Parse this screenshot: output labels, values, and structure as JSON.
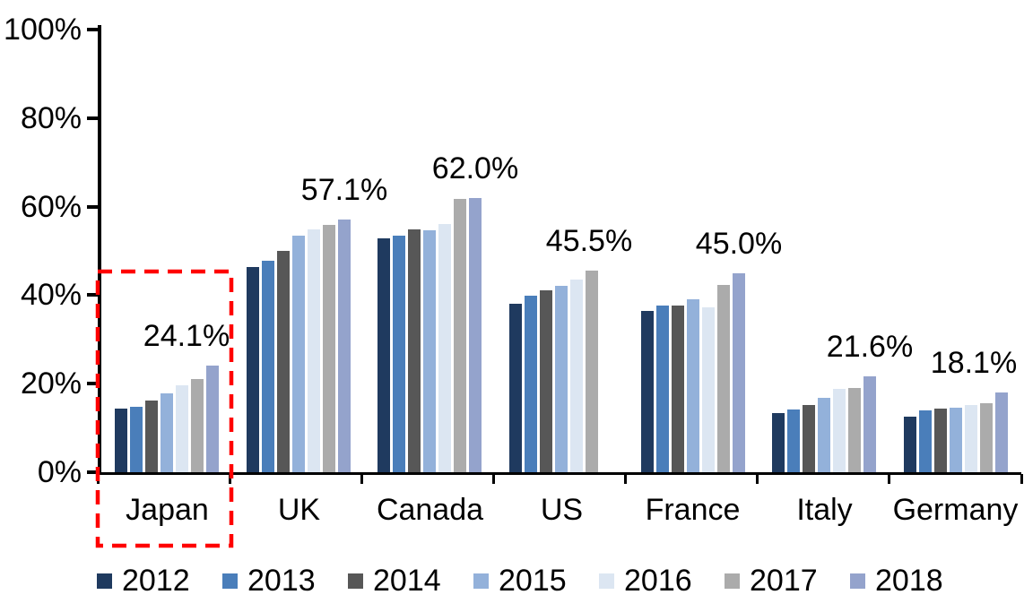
{
  "chart_data": {
    "type": "bar",
    "title": "",
    "xlabel": "",
    "ylabel": "",
    "categories": [
      "Japan",
      "UK",
      "Canada",
      "US",
      "France",
      "Italy",
      "Germany"
    ],
    "series": [
      {
        "name": "2012",
        "color": "#1F3A5F",
        "values": [
          14.4,
          46.3,
          52.9,
          38.1,
          36.5,
          13.3,
          12.6
        ]
      },
      {
        "name": "2013",
        "color": "#4A7EBA",
        "values": [
          14.8,
          47.8,
          53.4,
          39.9,
          37.6,
          14.1,
          14.0
        ]
      },
      {
        "name": "2014",
        "color": "#575757",
        "values": [
          16.3,
          50.0,
          54.9,
          41.1,
          37.6,
          15.2,
          14.3
        ]
      },
      {
        "name": "2015",
        "color": "#93B1DA",
        "values": [
          17.9,
          53.4,
          54.6,
          42.2,
          39.0,
          16.8,
          14.6
        ]
      },
      {
        "name": "2016",
        "color": "#DCE6F2",
        "values": [
          19.6,
          54.8,
          56.1,
          43.5,
          37.3,
          18.8,
          15.2
        ]
      },
      {
        "name": "2017",
        "color": "#ABABAB",
        "values": [
          21.0,
          55.9,
          61.8,
          45.5,
          42.3,
          19.0,
          15.6
        ]
      },
      {
        "name": "2018",
        "color": "#94A3CC",
        "values": [
          24.1,
          57.1,
          62.0,
          null,
          45.0,
          21.6,
          18.1
        ]
      }
    ],
    "value_labels": [
      {
        "category": "Japan",
        "text": "24.1%"
      },
      {
        "category": "UK",
        "text": "57.1%"
      },
      {
        "category": "Canada",
        "text": "62.0%"
      },
      {
        "category": "US",
        "text": "45.5%"
      },
      {
        "category": "France",
        "text": "45.0%"
      },
      {
        "category": "Italy",
        "text": "21.6%"
      },
      {
        "category": "Germany",
        "text": "18.1%"
      }
    ],
    "y_ticks": [
      "100%",
      "80%",
      "60%",
      "40%",
      "20%",
      "0%"
    ],
    "ylim": [
      0,
      100
    ],
    "grid": false,
    "legend_position": "bottom",
    "highlight": {
      "category": "Japan",
      "style": "dashed-box",
      "color": "#FF0000"
    }
  }
}
